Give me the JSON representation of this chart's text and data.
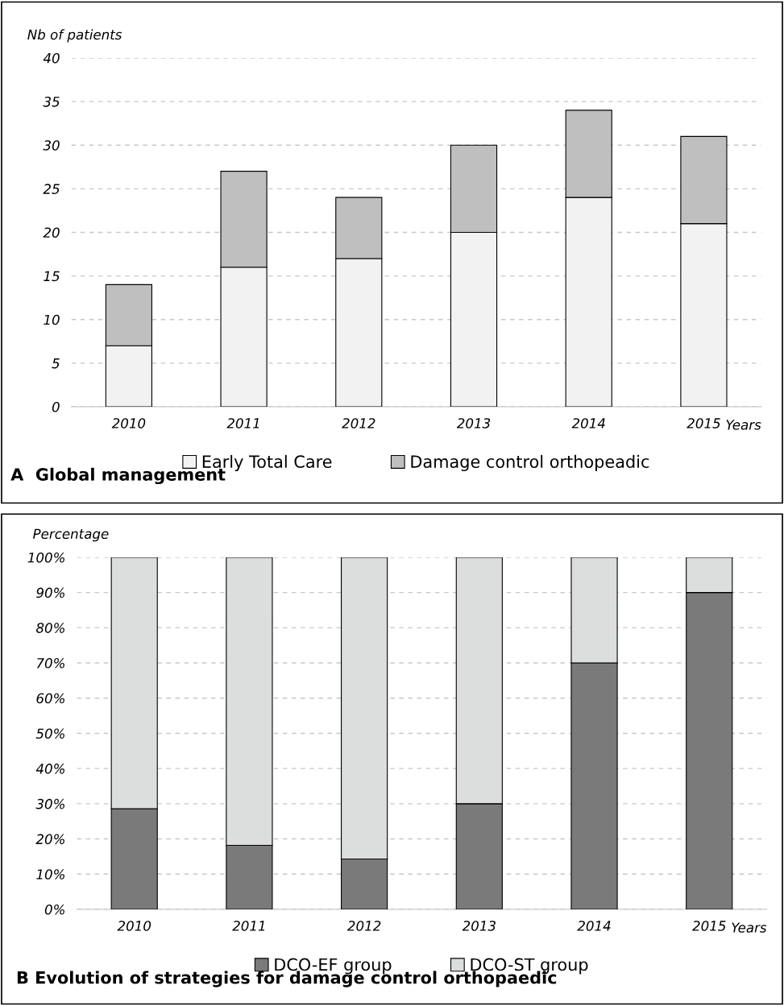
{
  "chart_data": [
    {
      "type": "bar",
      "title": "A  Global management",
      "ylabel": "Nb of patients",
      "xlabel": "Years",
      "stacked": true,
      "categories": [
        "2010",
        "2011",
        "2012",
        "2013",
        "2014",
        "2015"
      ],
      "series": [
        {
          "name": "Early Total Care",
          "color": "#f2f2f2",
          "values": [
            7,
            16,
            17,
            20,
            24,
            21
          ]
        },
        {
          "name": "Damage control orthopeadic",
          "color": "#bfbfbf",
          "values": [
            7,
            11,
            7,
            10,
            10,
            10
          ]
        }
      ],
      "ylim": [
        0,
        40
      ],
      "yticks": [
        0,
        5,
        10,
        15,
        20,
        25,
        30,
        35,
        40
      ],
      "grid": "y",
      "legend": "bottom"
    },
    {
      "type": "bar",
      "title": "B Evolution of strategies for damage control orthopaedic",
      "ylabel": "Percentage",
      "xlabel": "Years",
      "stacked": true,
      "categories": [
        "2010",
        "2011",
        "2012",
        "2013",
        "2014",
        "2015"
      ],
      "series": [
        {
          "name": "DCO-EF group",
          "color": "#7a7a7a",
          "values": [
            28.6,
            18.2,
            14.3,
            30,
            70,
            90
          ]
        },
        {
          "name": "DCO-ST group",
          "color": "#dcdddd",
          "values": [
            71.4,
            81.8,
            85.7,
            70,
            30,
            10
          ]
        }
      ],
      "ylim": [
        0,
        100
      ],
      "yticks": [
        {
          "value": 0,
          "label": "0%"
        },
        {
          "value": 10,
          "label": "10%"
        },
        {
          "value": 20,
          "label": "20%"
        },
        {
          "value": 30,
          "label": "30%"
        },
        {
          "value": 40,
          "label": "40%"
        },
        {
          "value": 50,
          "label": "50%"
        },
        {
          "value": 60,
          "label": "60%"
        },
        {
          "value": 70,
          "label": "70%"
        },
        {
          "value": 80,
          "label": "80%"
        },
        {
          "value": 90,
          "label": "90%"
        },
        {
          "value": 100,
          "label": "100%"
        }
      ],
      "grid": "y",
      "legend": "bottom"
    }
  ]
}
